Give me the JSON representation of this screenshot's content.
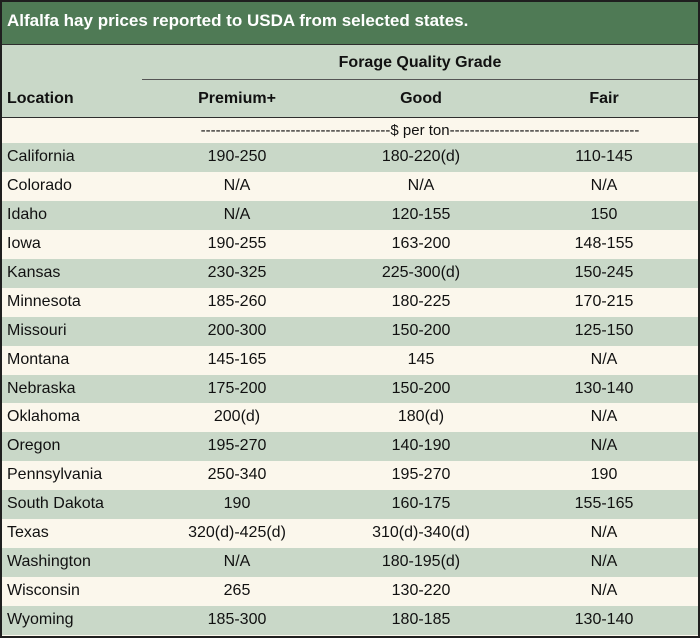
{
  "title": "Alfalfa hay prices reported to USDA from selected states.",
  "header": {
    "group_label": "Forage Quality Grade",
    "location_label": "Location",
    "col_premium": "Premium+",
    "col_good": "Good",
    "col_fair": "Fair"
  },
  "units": "--------------------------------------$ per ton--------------------------------------",
  "colors": {
    "title_bg": "#4f7a55",
    "band": "#c9d8c8",
    "paper": "#fbf7ec"
  },
  "rows": [
    {
      "location": "California",
      "premium": "190-250",
      "good": "180-220(d)",
      "fair": "110-145"
    },
    {
      "location": "Colorado",
      "premium": "N/A",
      "good": "N/A",
      "fair": "N/A"
    },
    {
      "location": "Idaho",
      "premium": "N/A",
      "good": "120-155",
      "fair": "150"
    },
    {
      "location": "Iowa",
      "premium": "190-255",
      "good": "163-200",
      "fair": "148-155"
    },
    {
      "location": "Kansas",
      "premium": "230-325",
      "good": "225-300(d)",
      "fair": "150-245"
    },
    {
      "location": "Minnesota",
      "premium": "185-260",
      "good": "180-225",
      "fair": "170-215"
    },
    {
      "location": "Missouri",
      "premium": "200-300",
      "good": "150-200",
      "fair": "125-150"
    },
    {
      "location": "Montana",
      "premium": "145-165",
      "good": "145",
      "fair": "N/A"
    },
    {
      "location": "Nebraska",
      "premium": "175-200",
      "good": "150-200",
      "fair": "130-140"
    },
    {
      "location": "Oklahoma",
      "premium": "200(d)",
      "good": "180(d)",
      "fair": "N/A"
    },
    {
      "location": "Oregon",
      "premium": "195-270",
      "good": "140-190",
      "fair": "N/A"
    },
    {
      "location": "Pennsylvania",
      "premium": "250-340",
      "good": "195-270",
      "fair": "190"
    },
    {
      "location": "South Dakota",
      "premium": "190",
      "good": "160-175",
      "fair": "155-165"
    },
    {
      "location": "Texas",
      "premium": "320(d)-425(d)",
      "good": "310(d)-340(d)",
      "fair": "N/A"
    },
    {
      "location": "Washington",
      "premium": "N/A",
      "good": "180-195(d)",
      "fair": "N/A"
    },
    {
      "location": "Wisconsin",
      "premium": "265",
      "good": "130-220",
      "fair": "N/A"
    },
    {
      "location": "Wyoming",
      "premium": "185-300",
      "good": "180-185",
      "fair": "130-140"
    }
  ]
}
